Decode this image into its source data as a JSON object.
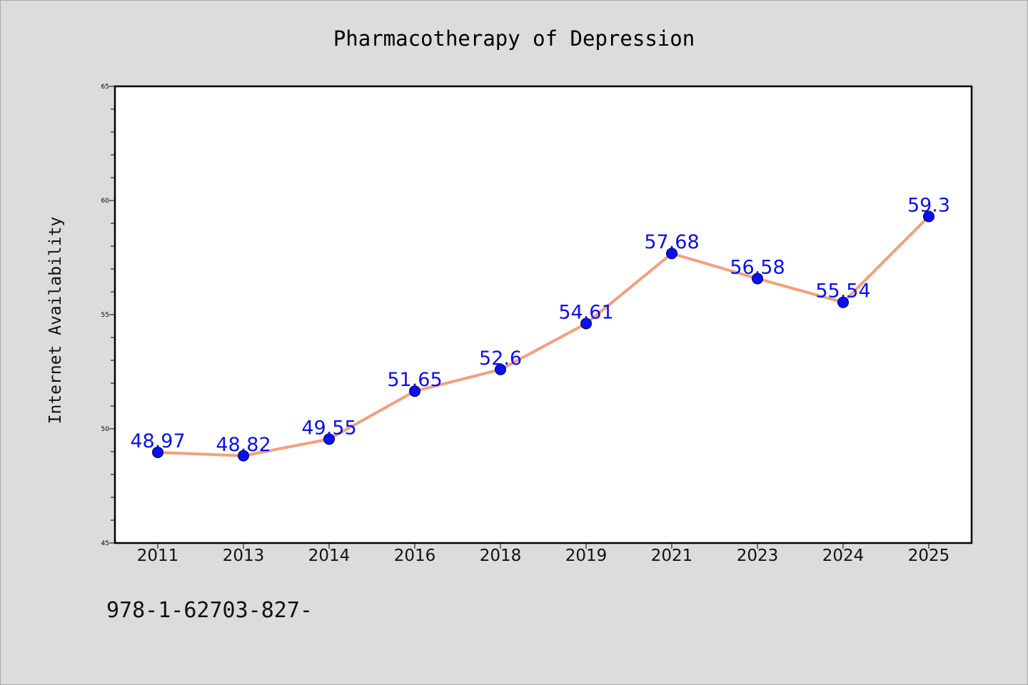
{
  "chart_data": {
    "type": "line",
    "title": "Pharmacotherapy of Depression",
    "xlabel": "",
    "ylabel": "Internet Availability",
    "categories": [
      "2011",
      "2013",
      "2014",
      "2016",
      "2018",
      "2019",
      "2021",
      "2023",
      "2024",
      "2025"
    ],
    "series": [
      {
        "values": [
          48.97,
          48.82,
          49.55,
          51.65,
          52.6,
          54.61,
          57.68,
          56.58,
          55.54,
          59.3
        ],
        "data_labels": [
          "48.97",
          "48.82",
          "49.55",
          "51.65",
          "52.6",
          "54.61",
          "57.68",
          "56.58",
          "55.54",
          "59.3"
        ]
      }
    ],
    "ylim": [
      45,
      65
    ],
    "yticks": [
      "45",
      "50",
      "55",
      "60",
      "65"
    ],
    "grid": false,
    "legend": "none",
    "colors": {
      "line": "#f4a07c",
      "marker": "#0a10f0",
      "label": "#0a10f0"
    }
  },
  "footer": {
    "text": "978-1-62703-827-"
  }
}
